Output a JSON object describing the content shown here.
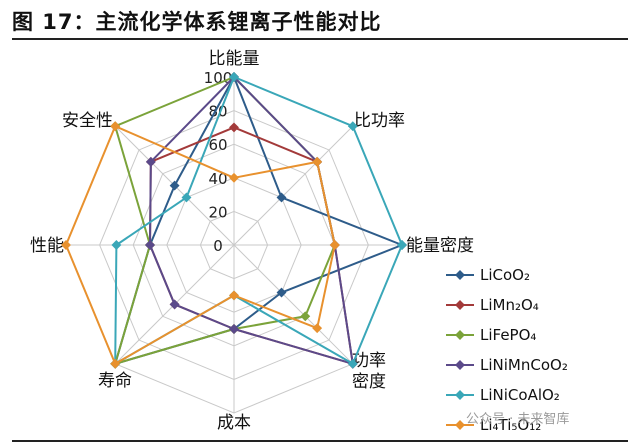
{
  "header": {
    "title": "图 17：主流化学体系锂离子性能对比"
  },
  "watermark": {
    "text": "公众号 · 未来智库"
  },
  "chart_data": {
    "type": "radar",
    "axes": [
      "比能量",
      "比功率",
      "能量密度",
      "功率密度",
      "成本",
      "寿命",
      "性能",
      "安全性"
    ],
    "radial_ticks": [
      0,
      20,
      40,
      60,
      80,
      100
    ],
    "rlim": [
      0,
      100
    ],
    "grid": true,
    "legend_position": "right",
    "series": [
      {
        "name": "LiCoO₂",
        "color": "#2E5C8A",
        "values": [
          100,
          40,
          100,
          40,
          50,
          100,
          50,
          50
        ]
      },
      {
        "name": "LiMn₂O₄",
        "color": "#A33A3A",
        "values": [
          70,
          70,
          60,
          100,
          50,
          50,
          50,
          70
        ]
      },
      {
        "name": "LiFePO₄",
        "color": "#7BA33A",
        "values": [
          100,
          70,
          60,
          60,
          50,
          100,
          50,
          100
        ]
      },
      {
        "name": "LiNiMnCoO₂",
        "color": "#5B4A8A",
        "values": [
          100,
          70,
          60,
          100,
          50,
          50,
          50,
          70
        ]
      },
      {
        "name": "LiNiCoAlO₂",
        "color": "#3AA7B8",
        "values": [
          100,
          100,
          100,
          100,
          30,
          100,
          70,
          40
        ]
      },
      {
        "name": "Li₄Ti₅O₁₂",
        "color": "#E8912E",
        "values": [
          40,
          70,
          60,
          70,
          30,
          100,
          100,
          100
        ]
      }
    ]
  }
}
